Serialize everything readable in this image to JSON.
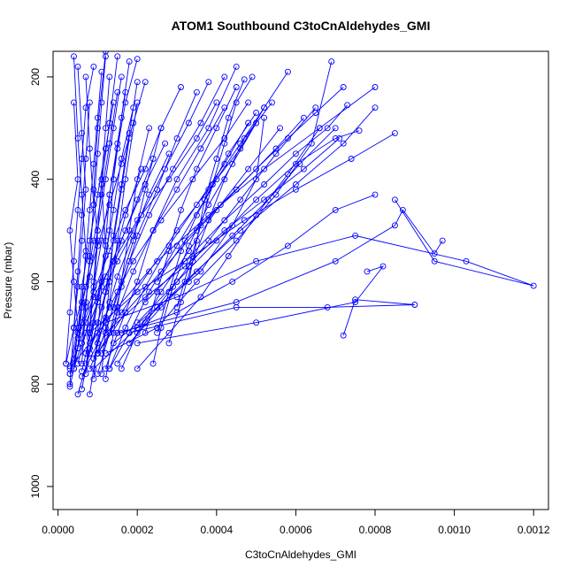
{
  "chart_data": {
    "type": "line",
    "title": "ATOM1 Southbound C3toCnAldehydes_GMI",
    "xlabel": "C3toCnAldehydes_GMI",
    "ylabel": "Pressure (mbar)",
    "xlim": [
      -1.25e-05,
      0.0012375
    ],
    "ylim": [
      1045,
      150
    ],
    "y_reversed": true,
    "grid": false,
    "x_ticks": [
      "0.0000",
      "0.0002",
      "0.0004",
      "0.0006",
      "0.0008",
      "0.0010",
      "0.0012"
    ],
    "x_tick_values": [
      0.0,
      0.0002,
      0.0004,
      0.0006,
      0.0008,
      0.001,
      0.0012
    ],
    "y_ticks": [
      "200",
      "400",
      "600",
      "800",
      "1000"
    ],
    "y_tick_values": [
      200,
      400,
      600,
      800,
      1000
    ],
    "color": "#0000ff",
    "series": [
      {
        "x": [
          3e-05,
          4e-05,
          5e-05,
          4e-05,
          3e-05,
          5e-05,
          4e-05
        ],
        "y": [
          805,
          770,
          690,
          600,
          500,
          400,
          250
        ]
      },
      {
        "x": [
          3e-05,
          5e-05,
          6e-05,
          7e-05,
          6e-05,
          5e-05,
          4e-05
        ],
        "y": [
          780,
          730,
          650,
          540,
          430,
          320,
          160
        ]
      },
      {
        "x": [
          4e-05,
          6e-05,
          7e-05,
          8e-05,
          9e-05,
          8e-05,
          7e-05
        ],
        "y": [
          770,
          720,
          640,
          560,
          450,
          340,
          200
        ]
      },
      {
        "x": [
          5e-05,
          7e-05,
          9e-05,
          0.0001,
          9e-05,
          0.0001,
          0.00012
        ],
        "y": [
          760,
          700,
          620,
          520,
          420,
          300,
          150
        ]
      },
      {
        "x": [
          6e-05,
          8e-05,
          0.0001,
          0.00012,
          0.00011,
          0.00013,
          0.00015
        ],
        "y": [
          775,
          710,
          630,
          530,
          410,
          290,
          160
        ]
      },
      {
        "x": [
          7e-05,
          9e-05,
          0.00011,
          0.00013,
          0.00014,
          0.00016,
          0.00018
        ],
        "y": [
          740,
          680,
          600,
          500,
          400,
          280,
          170
        ]
      },
      {
        "x": [
          2e-05,
          4e-05,
          5e-05,
          6e-05,
          7e-05,
          6e-05,
          5e-05
        ],
        "y": [
          760,
          690,
          610,
          520,
          420,
          310,
          180
        ]
      },
      {
        "x": [
          6e-05,
          0.0001,
          0.00013,
          0.00015,
          0.00017,
          0.0002
        ],
        "y": [
          785,
          720,
          640,
          520,
          400,
          250
        ]
      },
      {
        "x": [
          8e-05,
          0.00012,
          0.00015,
          0.00019,
          0.00022,
          0.00026
        ],
        "y": [
          770,
          700,
          620,
          520,
          420,
          300
        ]
      },
      {
        "x": [
          0.0001,
          0.00013,
          0.00016,
          0.0002,
          0.00025,
          0.0003,
          0.00035
        ],
        "y": [
          780,
          700,
          610,
          510,
          420,
          320,
          230
        ]
      },
      {
        "x": [
          0.00012,
          0.00015,
          0.0002,
          0.00024,
          0.0003,
          0.00038,
          0.00045
        ],
        "y": [
          770,
          700,
          600,
          500,
          400,
          300,
          180
        ]
      },
      {
        "x": [
          0.0001,
          0.00014,
          0.00018,
          0.00023,
          0.00029,
          0.00036,
          0.00042
        ],
        "y": [
          740,
          650,
          560,
          470,
          380,
          290,
          200
        ]
      },
      {
        "x": [
          5e-05,
          9e-05,
          0.00014,
          0.0002,
          0.00028,
          0.00035,
          0.0004
        ],
        "y": [
          710,
          630,
          560,
          480,
          400,
          320,
          250
        ]
      },
      {
        "x": [
          4e-05,
          7e-05,
          0.00012,
          0.00017,
          0.00022,
          0.00027
        ],
        "y": [
          750,
          680,
          590,
          500,
          410,
          330
        ]
      },
      {
        "x": [
          0.00013,
          0.00018,
          0.00023,
          0.0003,
          0.00037,
          0.00043,
          0.0005
        ],
        "y": [
          770,
          700,
          620,
          530,
          440,
          350,
          270
        ]
      },
      {
        "x": [
          0.0001,
          0.00016,
          0.00023,
          0.0003,
          0.00038,
          0.00046,
          0.00052,
          0.00058
        ],
        "y": [
          740,
          660,
          580,
          500,
          420,
          340,
          260,
          190
        ]
      },
      {
        "x": [
          0.00015,
          0.00022,
          0.0003,
          0.00038,
          0.00046,
          0.00055,
          0.00065
        ],
        "y": [
          760,
          680,
          600,
          520,
          440,
          350,
          260
        ]
      },
      {
        "x": [
          0.00012,
          0.00025,
          0.00035,
          0.00045,
          0.00055,
          0.00064,
          0.00069
        ],
        "y": [
          740,
          690,
          600,
          520,
          430,
          330,
          170
        ]
      },
      {
        "x": [
          0.00014,
          0.00025,
          0.00036,
          0.00044,
          0.0005,
          0.00052
        ],
        "y": [
          720,
          650,
          580,
          490,
          400,
          280
        ]
      },
      {
        "x": [
          0.0002,
          0.00028,
          0.00036,
          0.00043,
          0.0005,
          0.00058,
          0.00066
        ],
        "y": [
          770,
          700,
          630,
          550,
          470,
          390,
          300
        ]
      },
      {
        "x": [
          0.00018,
          0.00026,
          0.00035,
          0.00044,
          0.00053,
          0.00061,
          0.0007
        ],
        "y": [
          720,
          650,
          580,
          510,
          440,
          370,
          300
        ]
      },
      {
        "x": [
          0.00012,
          0.00022,
          0.00032,
          0.00042,
          0.00052,
          0.00062,
          0.00071
        ],
        "y": [
          700,
          630,
          570,
          500,
          440,
          380,
          320
        ]
      },
      {
        "x": [
          0.00016,
          0.0003,
          0.00044,
          0.00058,
          0.0007,
          0.0008
        ],
        "y": [
          700,
          660,
          600,
          530,
          460,
          430
        ]
      },
      {
        "x": [
          0.00015,
          0.00045,
          0.0007,
          0.00085,
          0.00087,
          0.00095,
          0.00097
        ],
        "y": [
          700,
          640,
          560,
          490,
          460,
          545,
          520
        ]
      },
      {
        "x": [
          0.0002,
          0.0005,
          0.00075,
          0.00082,
          0.00078
        ],
        "y": [
          720,
          680,
          640,
          570,
          580
        ]
      },
      {
        "x": [
          0.00018,
          0.00045,
          0.00068,
          0.0009,
          0.00075,
          0.00072
        ],
        "y": [
          700,
          650,
          650,
          645,
          635,
          705
        ]
      },
      {
        "x": [
          0.00012,
          0.0003,
          0.0005,
          0.00075,
          0.00103,
          0.0012,
          0.00095,
          0.00085
        ],
        "y": [
          680,
          630,
          560,
          510,
          560,
          608,
          560,
          440
        ]
      },
      {
        "x": [
          8e-05,
          0.0002,
          0.00034,
          0.00047,
          0.0006,
          0.00074,
          0.00085
        ],
        "y": [
          700,
          620,
          550,
          480,
          420,
          360,
          310
        ]
      },
      {
        "x": [
          0.0002,
          0.0003,
          0.0004,
          0.0005,
          0.0006,
          0.0007,
          0.00076
        ],
        "y": [
          680,
          600,
          520,
          440,
          370,
          320,
          305
        ]
      },
      {
        "x": [
          0.00022,
          0.00032,
          0.00042,
          0.00052,
          0.0006,
          0.00068,
          0.00073
        ],
        "y": [
          640,
          560,
          480,
          410,
          350,
          300,
          255
        ]
      },
      {
        "x": [
          0.00025,
          0.00032,
          0.00041,
          0.0005,
          0.00058,
          0.00065,
          0.00072
        ],
        "y": [
          600,
          520,
          450,
          380,
          320,
          270,
          220
        ]
      },
      {
        "x": [
          3e-05,
          8e-05,
          0.00015,
          0.00025,
          0.00038,
          0.00052,
          0.00066,
          0.0008
        ],
        "y": [
          770,
          720,
          650,
          560,
          470,
          380,
          300,
          220
        ]
      },
      {
        "x": [
          9e-05,
          0.0002,
          0.00032,
          0.00046,
          0.0006,
          0.00072,
          0.0008
        ],
        "y": [
          770,
          690,
          600,
          500,
          410,
          330,
          260
        ]
      },
      {
        "x": [
          0.0001,
          0.00017,
          0.00026,
          0.00035,
          0.00045,
          0.00055,
          0.00062
        ],
        "y": [
          740,
          660,
          580,
          500,
          420,
          340,
          280
        ]
      },
      {
        "x": [
          8e-05,
          0.00013,
          0.00019,
          0.00026,
          0.00034,
          0.00042,
          0.00048
        ],
        "y": [
          730,
          650,
          560,
          480,
          400,
          320,
          250
        ]
      },
      {
        "x": [
          6e-05,
          0.0001,
          0.00015,
          0.00021,
          0.00027,
          0.00033,
          0.00038
        ],
        "y": [
          720,
          640,
          560,
          470,
          380,
          290,
          210
        ]
      },
      {
        "x": [
          5e-05,
          9e-05,
          0.00013,
          0.00017,
          0.00022,
          0.00026,
          0.00031
        ],
        "y": [
          700,
          620,
          540,
          460,
          380,
          300,
          220
        ]
      },
      {
        "x": [
          4e-05,
          7e-05,
          0.0001,
          0.00013,
          0.00016,
          0.00019,
          0.00022
        ],
        "y": [
          690,
          610,
          530,
          450,
          370,
          290,
          210
        ]
      },
      {
        "x": [
          5e-05,
          8e-05,
          0.00011,
          0.00014,
          0.00017,
          0.00021
        ],
        "y": [
          820,
          740,
          650,
          560,
          470,
          380
        ]
      },
      {
        "x": [
          8e-05,
          0.0001,
          0.00012,
          0.00014,
          0.00016,
          0.00018
        ],
        "y": [
          820,
          720,
          620,
          520,
          420,
          320
        ]
      },
      {
        "x": [
          0.00012,
          0.00014,
          0.00016,
          0.00018,
          0.0002,
          0.00023
        ],
        "y": [
          790,
          700,
          600,
          500,
          400,
          300
        ]
      },
      {
        "x": [
          6e-05,
          8e-05,
          0.0001,
          0.00012,
          0.00014,
          0.00016,
          0.00019
        ],
        "y": [
          810,
          730,
          640,
          550,
          460,
          360,
          260
        ]
      },
      {
        "x": [
          3e-05,
          5e-05,
          6e-05,
          8e-05,
          0.0001,
          0.00012,
          0.00014
        ],
        "y": [
          780,
          700,
          610,
          520,
          430,
          340,
          250
        ]
      },
      {
        "x": [
          2e-05,
          3e-05,
          4e-05,
          5e-05,
          6e-05,
          7e-05,
          9e-05
        ],
        "y": [
          760,
          660,
          560,
          460,
          360,
          260,
          180
        ]
      },
      {
        "x": [
          7e-05,
          0.0001,
          0.00013,
          0.00016,
          0.0002,
          0.00024
        ],
        "y": [
          760,
          680,
          600,
          520,
          440,
          360
        ]
      },
      {
        "x": [
          9e-05,
          0.00012,
          0.00015,
          0.00019,
          0.00023,
          0.00028
        ],
        "y": [
          750,
          670,
          590,
          510,
          430,
          350
        ]
      },
      {
        "x": [
          0.00011,
          0.00015,
          0.00019,
          0.00024,
          0.0003,
          0.00036,
          0.00042
        ],
        "y": [
          740,
          660,
          580,
          500,
          420,
          340,
          260
        ]
      },
      {
        "x": [
          0.00013,
          0.00017,
          0.00022,
          0.00028,
          0.00035,
          0.00042,
          0.00048
        ],
        "y": [
          770,
          690,
          610,
          530,
          450,
          370,
          290
        ]
      },
      {
        "x": [
          0.00016,
          0.0002,
          0.00026,
          0.00033,
          0.0004,
          0.00048,
          0.00056
        ],
        "y": [
          770,
          700,
          620,
          540,
          460,
          380,
          300
        ]
      },
      {
        "x": [
          0.00024,
          0.00026,
          0.00029,
          0.00033,
          0.00038,
          0.00044,
          0.0005
        ],
        "y": [
          760,
          690,
          610,
          530,
          450,
          370,
          290
        ]
      },
      {
        "x": [
          0.00022,
          0.00025,
          0.00028,
          0.00031,
          0.00035,
          0.0004,
          0.00045
        ],
        "y": [
          700,
          620,
          540,
          460,
          380,
          300,
          220
        ]
      },
      {
        "x": [
          0.00025,
          0.00028,
          0.00031,
          0.00035,
          0.0004,
          0.00046,
          0.00052
        ],
        "y": [
          700,
          620,
          540,
          470,
          400,
          330,
          260
        ]
      },
      {
        "x": [
          0.00028,
          0.00031,
          0.00034,
          0.00038,
          0.00042,
          0.00047,
          0.00054
        ],
        "y": [
          720,
          640,
          560,
          480,
          400,
          320,
          250
        ]
      },
      {
        "x": [
          0.0003,
          0.00033,
          0.00036,
          0.00039,
          0.00042,
          0.00045,
          0.00049
        ],
        "y": [
          650,
          570,
          490,
          410,
          330,
          250,
          200
        ]
      },
      {
        "x": [
          0.00033,
          0.00035,
          0.00037,
          0.0004,
          0.00043,
          0.00047
        ],
        "y": [
          600,
          520,
          440,
          360,
          280,
          205
        ]
      },
      {
        "x": [
          3e-05,
          5e-05,
          7e-05,
          9e-05,
          0.00011,
          0.00013,
          0.00015
        ],
        "y": [
          765,
          690,
          610,
          520,
          430,
          330,
          230
        ]
      },
      {
        "x": [
          4e-05,
          6e-05,
          8e-05,
          0.0001,
          0.00012,
          0.00014,
          0.00016
        ],
        "y": [
          770,
          680,
          590,
          500,
          400,
          300,
          200
        ]
      },
      {
        "x": [
          6e-05,
          7e-05,
          8e-05,
          9e-05,
          0.0001,
          0.00011,
          0.00012
        ],
        "y": [
          760,
          650,
          550,
          450,
          350,
          250,
          160
        ]
      },
      {
        "x": [
          7e-05,
          8e-05,
          9e-05,
          0.0001,
          0.00011,
          0.00012,
          0.00013
        ],
        "y": [
          780,
          690,
          600,
          500,
          400,
          300,
          200
        ]
      },
      {
        "x": [
          9e-05,
          0.0001,
          0.00011,
          0.00012,
          0.00013,
          0.00015,
          0.00017
        ],
        "y": [
          790,
          700,
          610,
          520,
          430,
          330,
          230
        ]
      },
      {
        "x": [
          0.00011,
          0.00012,
          0.00013,
          0.00014,
          0.00016,
          0.00018,
          0.0002
        ],
        "y": [
          780,
          690,
          600,
          510,
          410,
          310,
          210
        ]
      },
      {
        "x": [
          8e-05,
          9e-05,
          0.00011,
          0.00013,
          0.00015,
          0.00017,
          0.0002
        ],
        "y": [
          700,
          610,
          520,
          430,
          340,
          250,
          165
        ]
      },
      {
        "x": [
          5e-05,
          6e-05,
          7e-05,
          8e-05,
          9e-05,
          0.0001,
          0.00011
        ],
        "y": [
          730,
          640,
          550,
          460,
          370,
          280,
          190
        ]
      },
      {
        "x": [
          3e-05,
          4e-05,
          5e-05,
          6e-05,
          7e-05,
          8e-05
        ],
        "y": [
          800,
          690,
          580,
          470,
          360,
          250
        ]
      }
    ]
  }
}
